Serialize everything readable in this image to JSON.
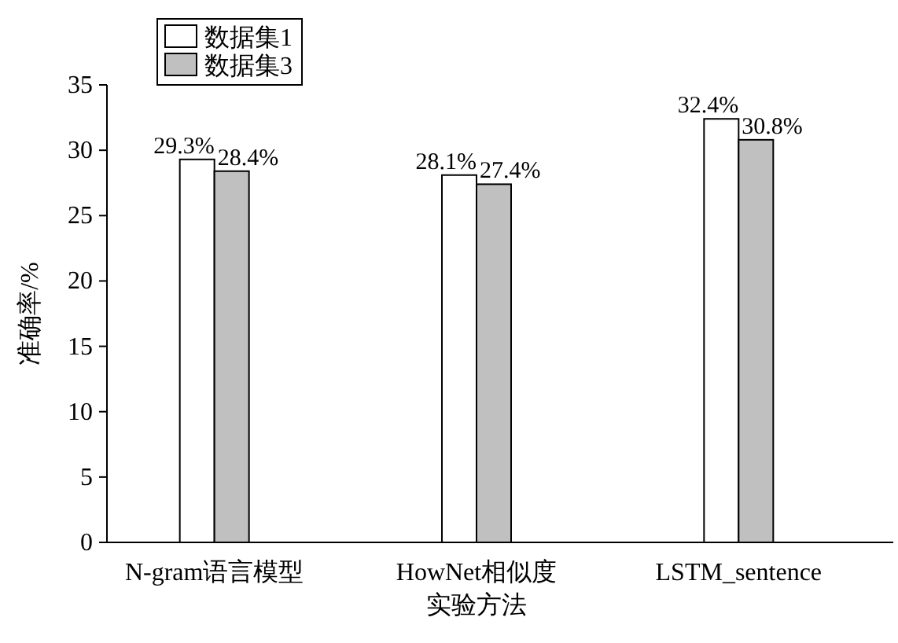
{
  "chart_data": {
    "type": "bar",
    "xlabel": "实验方法",
    "ylabel": "准确率/%",
    "categories": [
      "N-gram语言模型",
      "HowNet相似度",
      "LSTM_sentence"
    ],
    "series": [
      {
        "name": "数据集1",
        "color": "#ffffff",
        "values": [
          29.3,
          28.1,
          32.4
        ],
        "value_labels": [
          "29.3%",
          "28.1%",
          "32.4%"
        ]
      },
      {
        "name": "数据集3",
        "color": "#c0c0c0",
        "values": [
          28.4,
          27.4,
          30.8
        ],
        "value_labels": [
          "28.4%",
          "27.4%",
          "30.8%"
        ]
      }
    ],
    "ylim": [
      0,
      35
    ],
    "yticks": [
      0,
      5,
      10,
      15,
      20,
      25,
      30,
      35
    ],
    "legend": "top left",
    "grid": false
  }
}
